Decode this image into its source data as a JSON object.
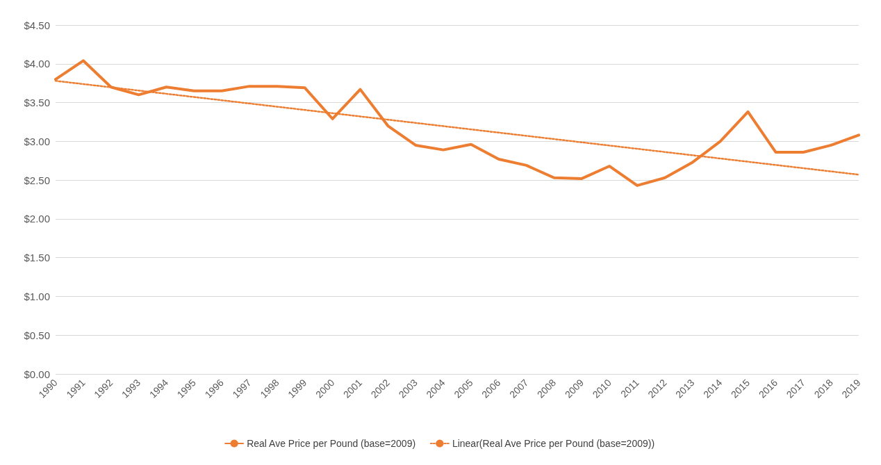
{
  "chart_data": {
    "type": "line",
    "categories": [
      "1990",
      "1991",
      "1992",
      "1993",
      "1994",
      "1995",
      "1996",
      "1997",
      "1998",
      "1999",
      "2000",
      "2001",
      "2002",
      "2003",
      "2004",
      "2005",
      "2006",
      "2007",
      "2008",
      "2009",
      "2010",
      "2011",
      "2012",
      "2013",
      "2014",
      "2015",
      "2016",
      "2017",
      "2018",
      "2019"
    ],
    "series": [
      {
        "name": "Real Ave Price per Pound (base=2009)",
        "color": "#ed7d31",
        "values": [
          3.8,
          4.04,
          3.7,
          3.6,
          3.7,
          3.65,
          3.65,
          3.71,
          3.71,
          3.69,
          3.29,
          3.67,
          3.2,
          2.95,
          2.89,
          2.96,
          2.77,
          2.69,
          2.53,
          2.52,
          2.68,
          2.43,
          2.53,
          2.73,
          3.0,
          3.38,
          2.86,
          2.86,
          2.95,
          3.08
        ]
      },
      {
        "name": "Linear(Real Ave Price per Pound (base=2009))",
        "type": "line",
        "color": "#ed7d31",
        "line_style": "dotted",
        "values": [
          3.78,
          null,
          null,
          null,
          null,
          null,
          null,
          null,
          null,
          null,
          null,
          null,
          null,
          null,
          null,
          null,
          null,
          null,
          null,
          null,
          null,
          null,
          null,
          null,
          null,
          null,
          null,
          null,
          null,
          2.57
        ]
      }
    ],
    "ylim": [
      0,
      4.5
    ],
    "yticks": [
      {
        "value": 0,
        "label": "$0.00"
      },
      {
        "value": 0.5,
        "label": "$0.50"
      },
      {
        "value": 1,
        "label": "$1.00"
      },
      {
        "value": 1.5,
        "label": "$1.50"
      },
      {
        "value": 2,
        "label": "$2.00"
      },
      {
        "value": 2.5,
        "label": "$2.50"
      },
      {
        "value": 3,
        "label": "$3.00"
      },
      {
        "value": 3.5,
        "label": "$3.50"
      },
      {
        "value": 4,
        "label": "$4.00"
      },
      {
        "value": 4.5,
        "label": "$4.50"
      }
    ],
    "grid": "y",
    "legend": "bottom",
    "marker": "none",
    "line_style": "solid"
  }
}
